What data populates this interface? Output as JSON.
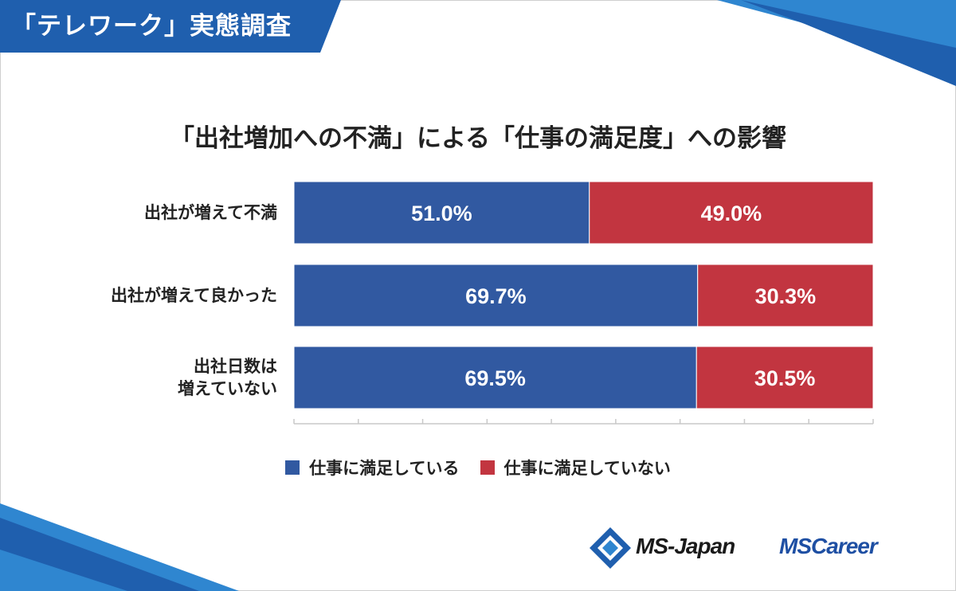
{
  "header": {
    "title": "「テレワーク」実態調査"
  },
  "colors": {
    "satisfied": "#3159a1",
    "not_satisfied": "#c23540",
    "header_blue": "#1f5fae",
    "accent_light": "#2f86d0"
  },
  "chart_data": {
    "type": "bar",
    "orientation": "horizontal",
    "stacked": true,
    "title": "「出社増加への不満」による「仕事の満足度」への影響",
    "categories": [
      "出社が増えて不満",
      "出社が増えて良かった",
      "出社日数は\n増えていない"
    ],
    "series": [
      {
        "name": "仕事に満足している",
        "values": [
          51.0,
          69.7,
          69.5
        ],
        "labels": [
          "51.0%",
          "69.7%",
          "69.5%"
        ]
      },
      {
        "name": "仕事に満足していない",
        "values": [
          49.0,
          30.3,
          30.5
        ],
        "labels": [
          "49.0%",
          "30.3%",
          "30.5%"
        ]
      }
    ],
    "xlim": [
      0,
      100
    ],
    "legend": "bottom"
  },
  "logos": {
    "ms_japan": "MS-Japan",
    "ms_career": "MSCareer"
  }
}
